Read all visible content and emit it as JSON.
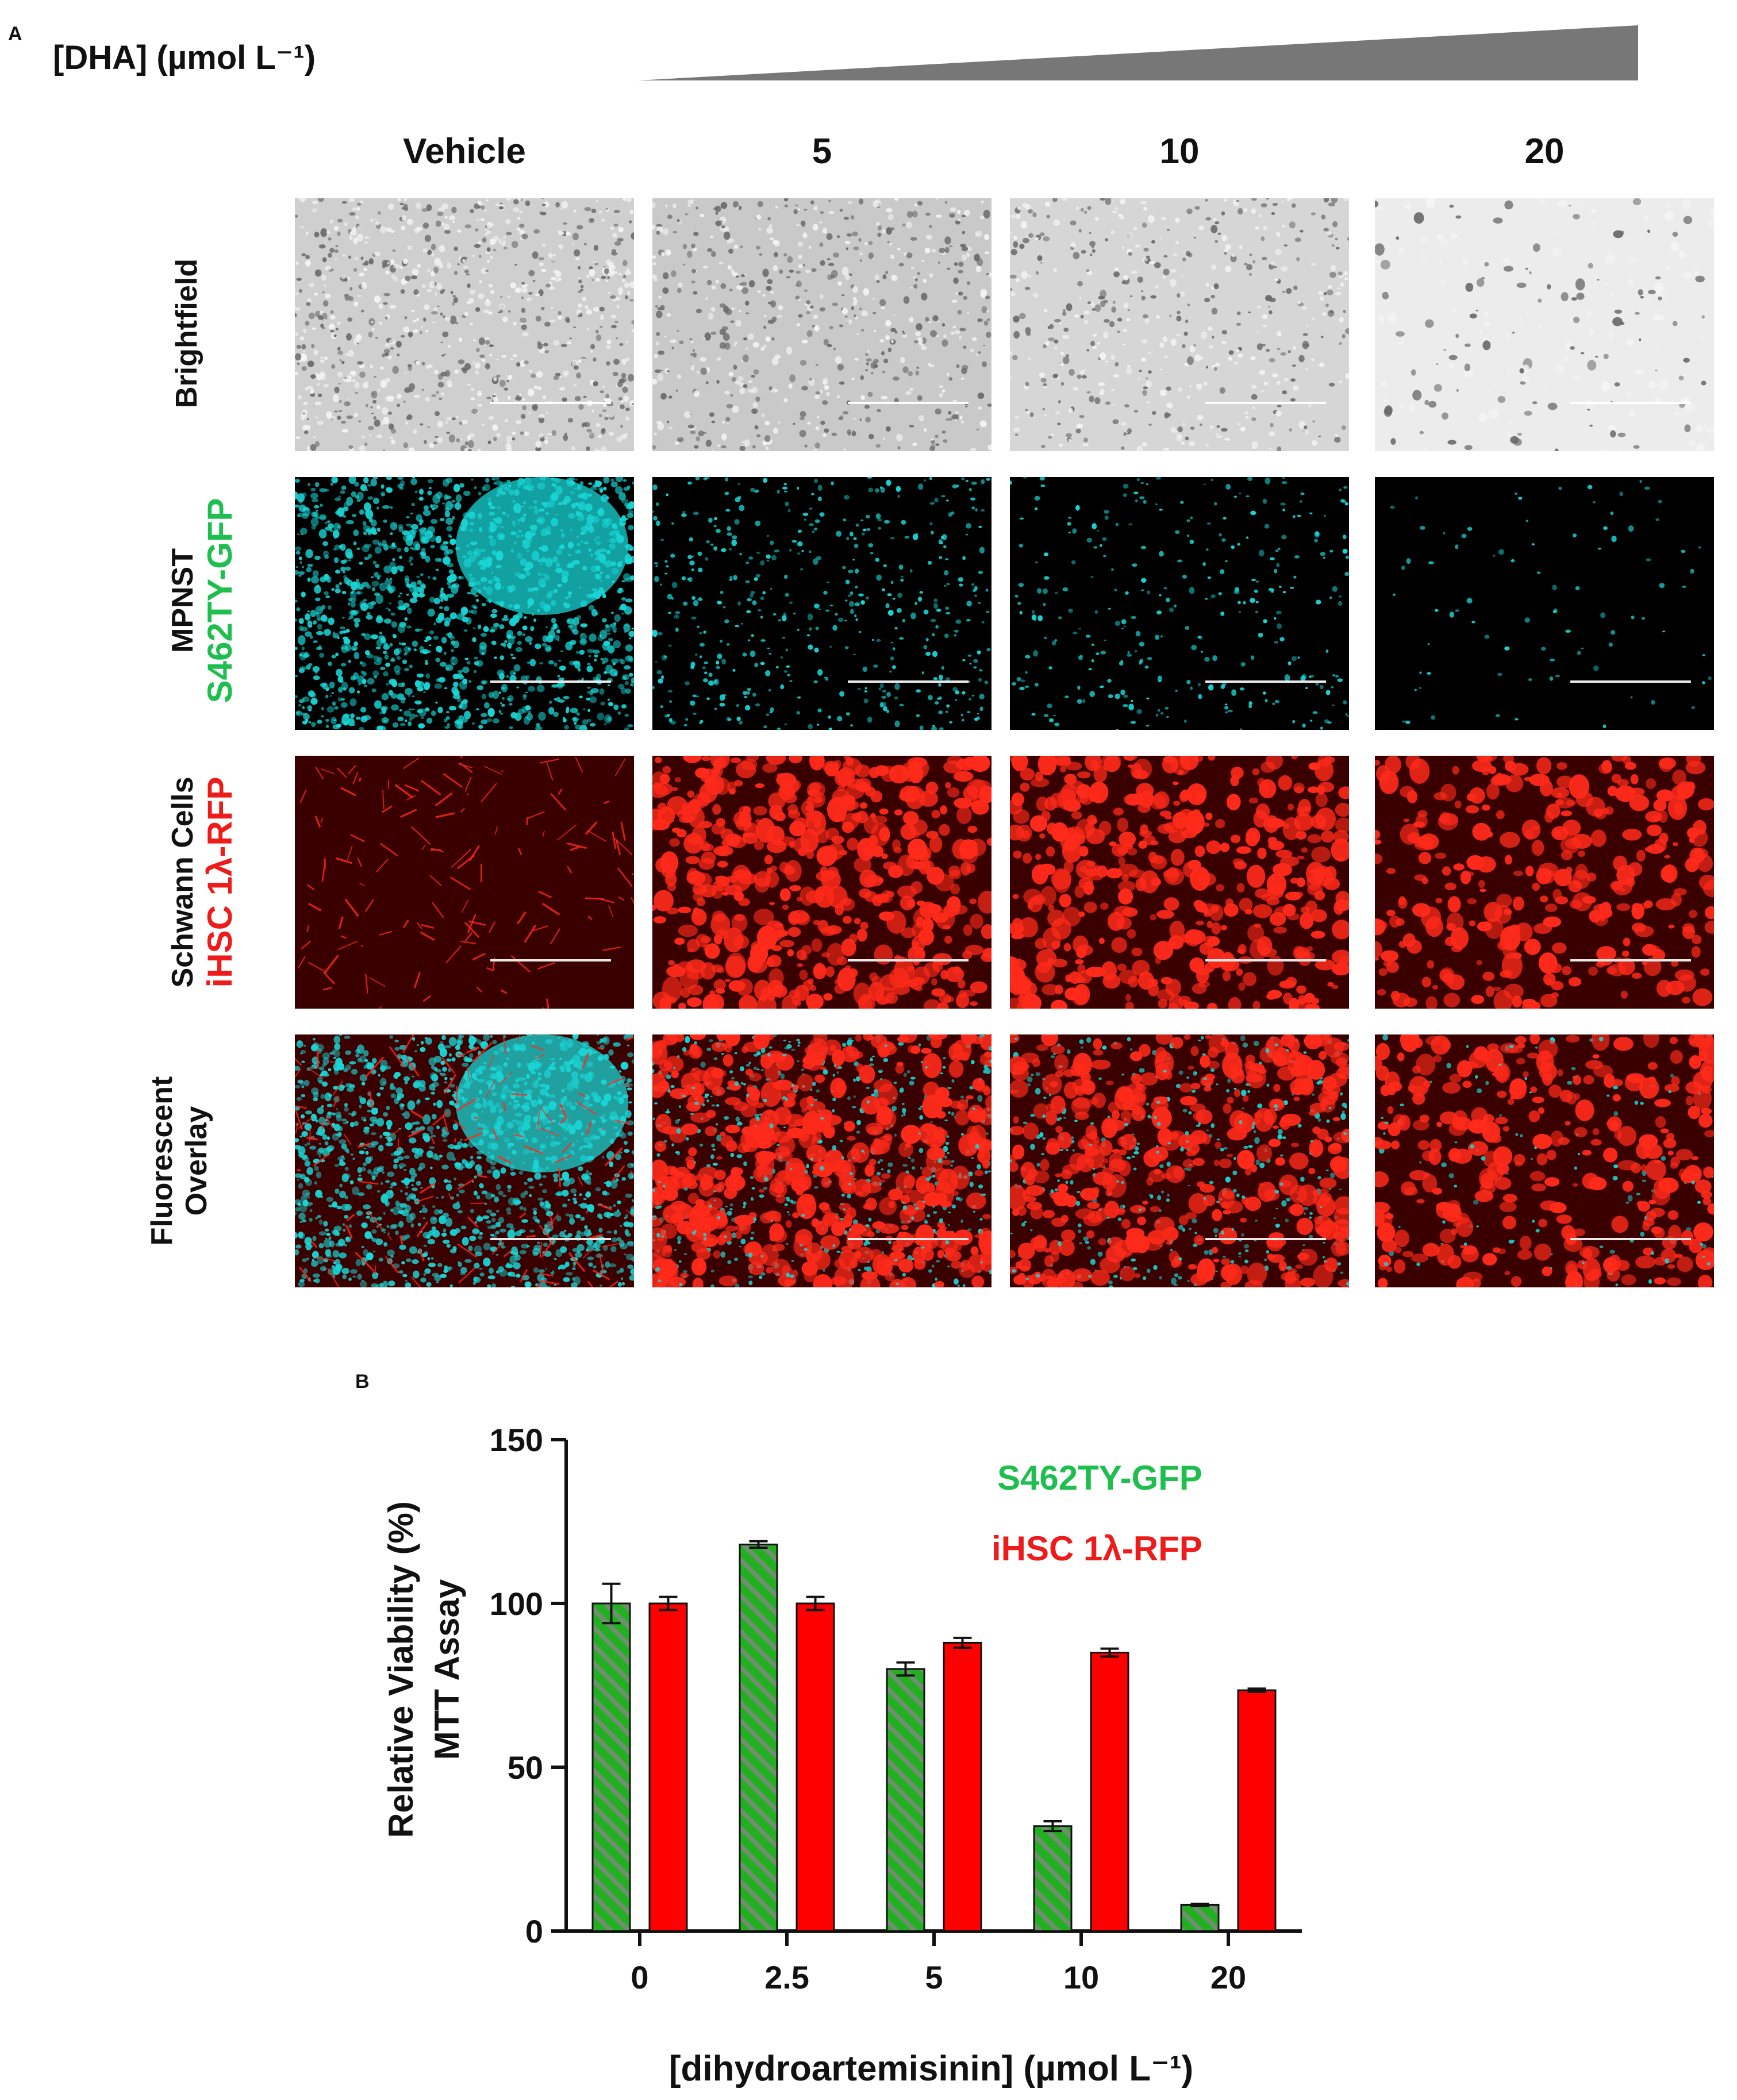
{
  "panel_a": {
    "letter": "A",
    "dose_label": "[DHA] (µmol  L⁻¹)",
    "columns": [
      "Vehicle",
      "5",
      "10",
      "20"
    ],
    "rows": [
      {
        "lines": [
          "Brightfield"
        ],
        "colors": [
          "#111111"
        ]
      },
      {
        "lines": [
          "MPNST",
          "S462TY-GFP"
        ],
        "colors": [
          "#111111",
          "#1fbf4f"
        ]
      },
      {
        "lines": [
          "Schwann Cells",
          "iHSC 1λ-RFP"
        ],
        "colors": [
          "#111111",
          "#ee1b1b"
        ]
      },
      {
        "lines": [
          "Fluorescent",
          "Overlay"
        ],
        "colors": [
          "#111111",
          "#111111"
        ]
      }
    ],
    "colors": {
      "gfp": "#19d6d6",
      "rfp": "#ff2a1a",
      "wedge": "#777777"
    }
  },
  "panel_b": {
    "letter": "B"
  },
  "chart_data": {
    "type": "bar",
    "categories": [
      "0",
      "2.5",
      "5",
      "10",
      "20"
    ],
    "xlabel": "[dihydroartemisinin] (µmol L⁻¹)",
    "ylabel_lines": [
      "Relative Viability (%)",
      "MTT  Assay"
    ],
    "ylim": [
      0,
      150
    ],
    "yticks": [
      0,
      50,
      100,
      150
    ],
    "legend_position": "top-right",
    "series": [
      {
        "name": "S462TY-GFP",
        "color": "#22b022",
        "pattern": "diagonal-hatch",
        "values": [
          100,
          118,
          80,
          32,
          8
        ],
        "errors": [
          6,
          1,
          2,
          1.5,
          0.3
        ]
      },
      {
        "name": "iHSC 1λ-RFP",
        "color": "#ff0000",
        "pattern": "solid",
        "values": [
          100,
          100,
          88,
          85,
          73.5
        ],
        "errors": [
          2,
          2,
          1.5,
          1.2,
          0.5
        ]
      }
    ],
    "legend_text_colors": [
      "#1fbf4f",
      "#ee1b1b"
    ]
  }
}
